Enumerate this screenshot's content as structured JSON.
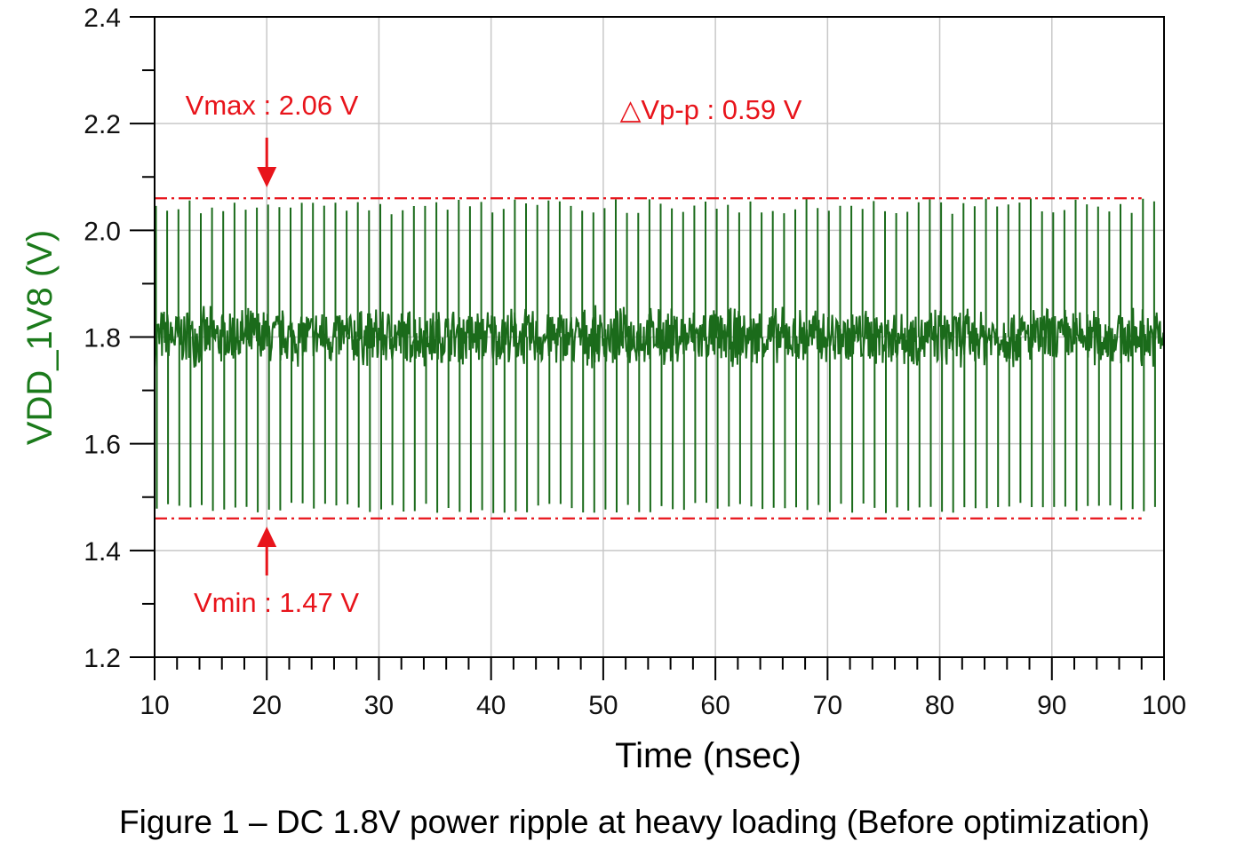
{
  "chart_data": {
    "type": "line",
    "xlabel": "Time (nsec)",
    "ylabel": "VDD_1V8 (V)",
    "caption": "Figure 1 – DC 1.8V power ripple at heavy loading (Before optimization)",
    "xlim": [
      10,
      100
    ],
    "ylim": [
      1.2,
      2.4
    ],
    "x_ticks": [
      10,
      20,
      30,
      40,
      50,
      60,
      70,
      80,
      90,
      100
    ],
    "x_tick_labels": [
      "10",
      "20",
      "30",
      "40",
      "50",
      "60",
      "70",
      "80",
      "90",
      "100"
    ],
    "x_minor_step": 2,
    "y_ticks": [
      1.2,
      1.4,
      1.6,
      1.8,
      2.0,
      2.2,
      2.4
    ],
    "y_tick_labels": [
      "1.2",
      "1.4",
      "1.6",
      "1.8",
      "2.0",
      "2.2",
      "2.4"
    ],
    "y_minor_step": 0.1,
    "grid": true,
    "series": [
      {
        "color": "#1b6b1b",
        "nominal": 1.8,
        "ripple_band": [
          1.74,
          1.86
        ],
        "spike_period_ns": 1,
        "spike_max": 2.06,
        "spike_min": 1.47,
        "x_start": 10,
        "x_end": 100
      }
    ],
    "reference_lines": [
      {
        "y": 2.06,
        "style": "dash-dot",
        "color": "#e8141b",
        "x_range": [
          10,
          98
        ]
      },
      {
        "y": 1.46,
        "style": "dash-dot",
        "color": "#e8141b",
        "x_range": [
          10,
          98
        ]
      }
    ],
    "annotations": [
      {
        "text": "Vmax : 2.06 V",
        "x": 20,
        "y": 2.06,
        "arrow": "down"
      },
      {
        "text": "Vmin : 1.47 V",
        "x": 20,
        "y": 1.46,
        "arrow": "up"
      },
      {
        "text": "△Vp-p : 0.59 V"
      }
    ],
    "annotation_color": "#e8141b",
    "ylabel_color": "#1b7a1b"
  }
}
